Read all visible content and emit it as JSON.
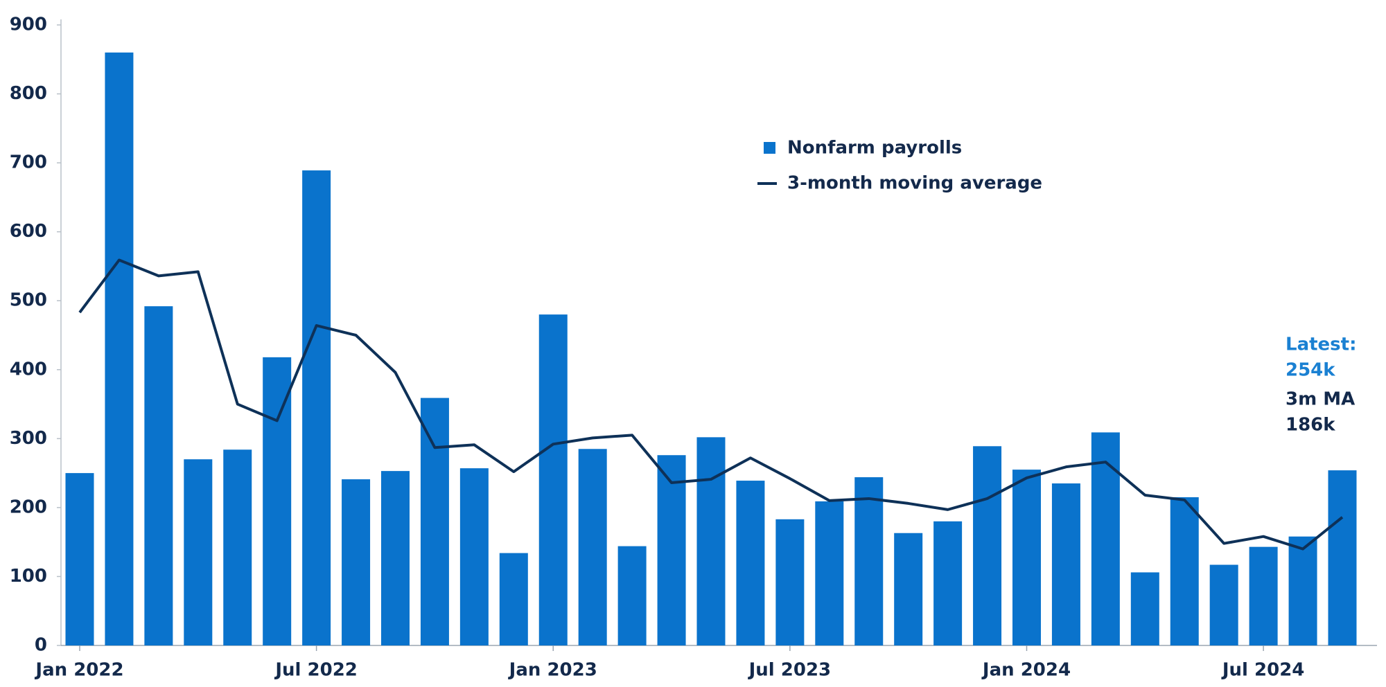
{
  "chart_data": {
    "type": "bar",
    "categories": [
      "Jan 2022",
      null,
      null,
      null,
      null,
      null,
      "Jul 2022",
      null,
      null,
      null,
      null,
      null,
      "Jan 2023",
      null,
      null,
      null,
      null,
      null,
      "Jul 2023",
      null,
      null,
      null,
      null,
      null,
      "Jan 2024",
      null,
      null,
      null,
      null,
      null,
      "Jul 2024",
      null,
      null
    ],
    "series": [
      {
        "name": "Nonfarm payrolls",
        "type": "bar",
        "color": "#0a73cc",
        "values": [
          250,
          860,
          492,
          270,
          284,
          418,
          689,
          241,
          253,
          359,
          257,
          134,
          480,
          285,
          144,
          276,
          302,
          239,
          183,
          209,
          244,
          163,
          180,
          289,
          255,
          235,
          309,
          106,
          215,
          117,
          143,
          158,
          254
        ]
      },
      {
        "name": "3-month moving average",
        "type": "line",
        "color": "#0e3158",
        "values": [
          483,
          559,
          536,
          542,
          350,
          326,
          464,
          450,
          396,
          287,
          291,
          252,
          292,
          301,
          305,
          236,
          241,
          272,
          242,
          210,
          213,
          206,
          197,
          213,
          243,
          259,
          266,
          218,
          211,
          148,
          158,
          140,
          186
        ]
      }
    ],
    "ylim": [
      0,
      900
    ],
    "yticks": [
      0,
      100,
      200,
      300,
      400,
      500,
      600,
      700,
      800,
      900
    ],
    "legend": "top-center",
    "annotations": [
      {
        "lines": [
          "Latest:",
          "254k"
        ],
        "color": "#1a80d2"
      },
      {
        "lines": [
          "3m MA",
          "186k"
        ],
        "color": "#13294b"
      }
    ]
  }
}
